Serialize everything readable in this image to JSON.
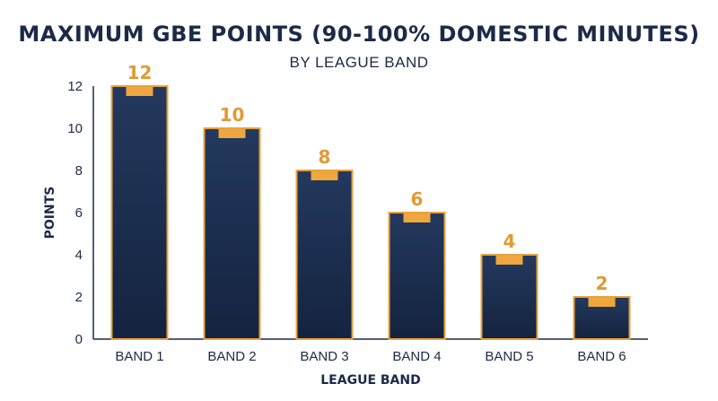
{
  "chart_data": {
    "type": "bar",
    "title": "MAXIMUM GBE POINTS (90-100% DOMESTIC MINUTES)",
    "subtitle": "BY LEAGUE BAND",
    "xlabel": "LEAGUE BAND",
    "ylabel": "POINTS",
    "categories": [
      "BAND 1",
      "BAND 2",
      "BAND 3",
      "BAND 4",
      "BAND 5",
      "BAND 6"
    ],
    "values": [
      12,
      10,
      8,
      6,
      4,
      2
    ],
    "data_labels": [
      "12",
      "10",
      "8",
      "6",
      "4",
      "2"
    ],
    "ylim": [
      0,
      12
    ],
    "yticks": [
      0,
      2,
      4,
      6,
      8,
      10,
      12
    ],
    "grid": false,
    "legend": "none",
    "colors": {
      "bar_fill_top": "#24395e",
      "bar_fill_bottom": "#14233f",
      "bar_outline": "#e8a23c",
      "cap": "#eea63f",
      "value_label": "#e09a35",
      "text": "#1b2a47"
    }
  }
}
